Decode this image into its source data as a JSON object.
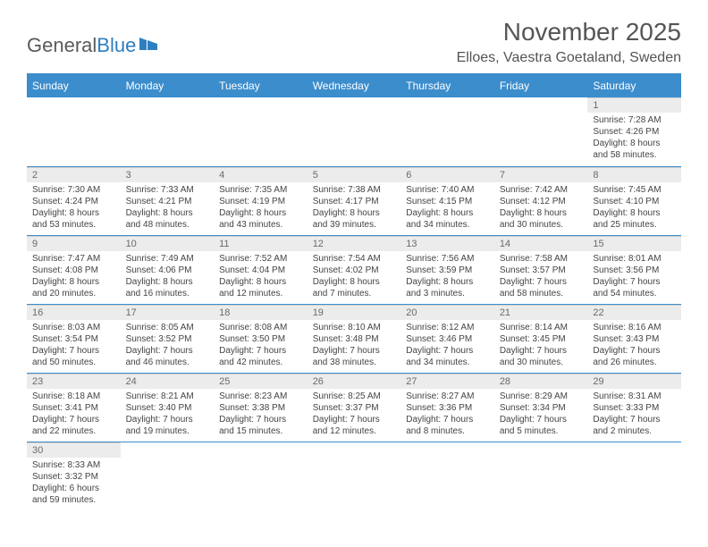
{
  "brand": {
    "part1": "General",
    "part2": "Blue"
  },
  "colors": {
    "header_bg": "#3c8dcc",
    "daynum_bg": "#ececec",
    "border": "#3c8dcc"
  },
  "title": "November 2025",
  "location": "Elloes, Vaestra Goetaland, Sweden",
  "weekday_headers": [
    "Sunday",
    "Monday",
    "Tuesday",
    "Wednesday",
    "Thursday",
    "Friday",
    "Saturday"
  ],
  "weeks": [
    [
      null,
      null,
      null,
      null,
      null,
      null,
      {
        "n": "1",
        "sr": "Sunrise: 7:28 AM",
        "ss": "Sunset: 4:26 PM",
        "d1": "Daylight: 8 hours",
        "d2": "and 58 minutes."
      }
    ],
    [
      {
        "n": "2",
        "sr": "Sunrise: 7:30 AM",
        "ss": "Sunset: 4:24 PM",
        "d1": "Daylight: 8 hours",
        "d2": "and 53 minutes."
      },
      {
        "n": "3",
        "sr": "Sunrise: 7:33 AM",
        "ss": "Sunset: 4:21 PM",
        "d1": "Daylight: 8 hours",
        "d2": "and 48 minutes."
      },
      {
        "n": "4",
        "sr": "Sunrise: 7:35 AM",
        "ss": "Sunset: 4:19 PM",
        "d1": "Daylight: 8 hours",
        "d2": "and 43 minutes."
      },
      {
        "n": "5",
        "sr": "Sunrise: 7:38 AM",
        "ss": "Sunset: 4:17 PM",
        "d1": "Daylight: 8 hours",
        "d2": "and 39 minutes."
      },
      {
        "n": "6",
        "sr": "Sunrise: 7:40 AM",
        "ss": "Sunset: 4:15 PM",
        "d1": "Daylight: 8 hours",
        "d2": "and 34 minutes."
      },
      {
        "n": "7",
        "sr": "Sunrise: 7:42 AM",
        "ss": "Sunset: 4:12 PM",
        "d1": "Daylight: 8 hours",
        "d2": "and 30 minutes."
      },
      {
        "n": "8",
        "sr": "Sunrise: 7:45 AM",
        "ss": "Sunset: 4:10 PM",
        "d1": "Daylight: 8 hours",
        "d2": "and 25 minutes."
      }
    ],
    [
      {
        "n": "9",
        "sr": "Sunrise: 7:47 AM",
        "ss": "Sunset: 4:08 PM",
        "d1": "Daylight: 8 hours",
        "d2": "and 20 minutes."
      },
      {
        "n": "10",
        "sr": "Sunrise: 7:49 AM",
        "ss": "Sunset: 4:06 PM",
        "d1": "Daylight: 8 hours",
        "d2": "and 16 minutes."
      },
      {
        "n": "11",
        "sr": "Sunrise: 7:52 AM",
        "ss": "Sunset: 4:04 PM",
        "d1": "Daylight: 8 hours",
        "d2": "and 12 minutes."
      },
      {
        "n": "12",
        "sr": "Sunrise: 7:54 AM",
        "ss": "Sunset: 4:02 PM",
        "d1": "Daylight: 8 hours",
        "d2": "and 7 minutes."
      },
      {
        "n": "13",
        "sr": "Sunrise: 7:56 AM",
        "ss": "Sunset: 3:59 PM",
        "d1": "Daylight: 8 hours",
        "d2": "and 3 minutes."
      },
      {
        "n": "14",
        "sr": "Sunrise: 7:58 AM",
        "ss": "Sunset: 3:57 PM",
        "d1": "Daylight: 7 hours",
        "d2": "and 58 minutes."
      },
      {
        "n": "15",
        "sr": "Sunrise: 8:01 AM",
        "ss": "Sunset: 3:56 PM",
        "d1": "Daylight: 7 hours",
        "d2": "and 54 minutes."
      }
    ],
    [
      {
        "n": "16",
        "sr": "Sunrise: 8:03 AM",
        "ss": "Sunset: 3:54 PM",
        "d1": "Daylight: 7 hours",
        "d2": "and 50 minutes."
      },
      {
        "n": "17",
        "sr": "Sunrise: 8:05 AM",
        "ss": "Sunset: 3:52 PM",
        "d1": "Daylight: 7 hours",
        "d2": "and 46 minutes."
      },
      {
        "n": "18",
        "sr": "Sunrise: 8:08 AM",
        "ss": "Sunset: 3:50 PM",
        "d1": "Daylight: 7 hours",
        "d2": "and 42 minutes."
      },
      {
        "n": "19",
        "sr": "Sunrise: 8:10 AM",
        "ss": "Sunset: 3:48 PM",
        "d1": "Daylight: 7 hours",
        "d2": "and 38 minutes."
      },
      {
        "n": "20",
        "sr": "Sunrise: 8:12 AM",
        "ss": "Sunset: 3:46 PM",
        "d1": "Daylight: 7 hours",
        "d2": "and 34 minutes."
      },
      {
        "n": "21",
        "sr": "Sunrise: 8:14 AM",
        "ss": "Sunset: 3:45 PM",
        "d1": "Daylight: 7 hours",
        "d2": "and 30 minutes."
      },
      {
        "n": "22",
        "sr": "Sunrise: 8:16 AM",
        "ss": "Sunset: 3:43 PM",
        "d1": "Daylight: 7 hours",
        "d2": "and 26 minutes."
      }
    ],
    [
      {
        "n": "23",
        "sr": "Sunrise: 8:18 AM",
        "ss": "Sunset: 3:41 PM",
        "d1": "Daylight: 7 hours",
        "d2": "and 22 minutes."
      },
      {
        "n": "24",
        "sr": "Sunrise: 8:21 AM",
        "ss": "Sunset: 3:40 PM",
        "d1": "Daylight: 7 hours",
        "d2": "and 19 minutes."
      },
      {
        "n": "25",
        "sr": "Sunrise: 8:23 AM",
        "ss": "Sunset: 3:38 PM",
        "d1": "Daylight: 7 hours",
        "d2": "and 15 minutes."
      },
      {
        "n": "26",
        "sr": "Sunrise: 8:25 AM",
        "ss": "Sunset: 3:37 PM",
        "d1": "Daylight: 7 hours",
        "d2": "and 12 minutes."
      },
      {
        "n": "27",
        "sr": "Sunrise: 8:27 AM",
        "ss": "Sunset: 3:36 PM",
        "d1": "Daylight: 7 hours",
        "d2": "and 8 minutes."
      },
      {
        "n": "28",
        "sr": "Sunrise: 8:29 AM",
        "ss": "Sunset: 3:34 PM",
        "d1": "Daylight: 7 hours",
        "d2": "and 5 minutes."
      },
      {
        "n": "29",
        "sr": "Sunrise: 8:31 AM",
        "ss": "Sunset: 3:33 PM",
        "d1": "Daylight: 7 hours",
        "d2": "and 2 minutes."
      }
    ],
    [
      {
        "n": "30",
        "sr": "Sunrise: 8:33 AM",
        "ss": "Sunset: 3:32 PM",
        "d1": "Daylight: 6 hours",
        "d2": "and 59 minutes."
      },
      null,
      null,
      null,
      null,
      null,
      null
    ]
  ]
}
